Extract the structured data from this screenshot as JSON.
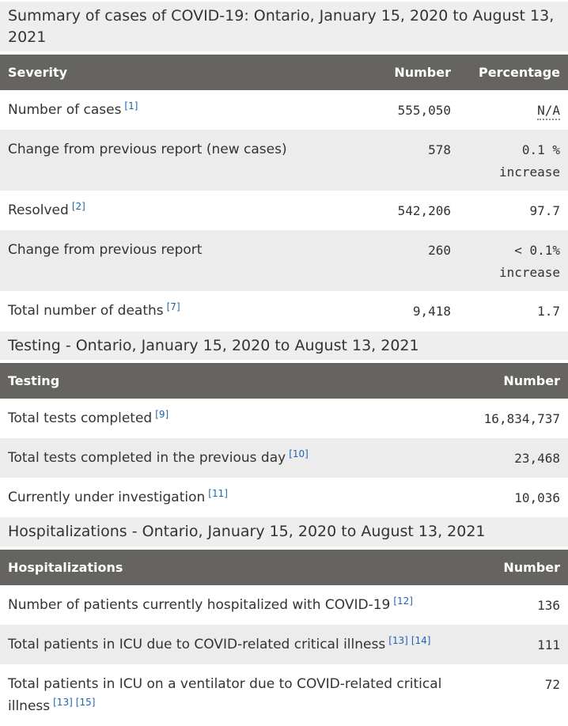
{
  "colors": {
    "text": "#333333",
    "link": "#2064b0",
    "header_bg": "#666461",
    "header_text": "#ffffff",
    "stripe": "#ececec",
    "caption_bg": "#eeeeee",
    "page_bg": "#ffffff"
  },
  "tables": [
    {
      "caption": "Summary of cases of COVID-19: Ontario, January 15, 2020 to August 13, 2021",
      "columns": [
        "Severity",
        "Number",
        "Percentage"
      ],
      "rows": [
        {
          "label": "Number of cases",
          "footnotes": [
            "[1]"
          ],
          "number": "555,050",
          "percentage": "N/A",
          "abbr": true
        },
        {
          "label": "Change from previous report (new cases)",
          "footnotes": [],
          "number": "578",
          "percentage": "0.1 %",
          "percentage_line2": "increase"
        },
        {
          "label": "Resolved",
          "footnotes": [
            "[2]"
          ],
          "number": "542,206",
          "percentage": "97.7"
        },
        {
          "label": "Change from previous report",
          "footnotes": [],
          "number": "260",
          "percentage": "< 0.1%",
          "percentage_line2": "increase"
        },
        {
          "label": "Total number of deaths",
          "footnotes": [
            "[7]"
          ],
          "number": "9,418",
          "percentage": "1.7"
        }
      ]
    },
    {
      "caption": "Testing - Ontario, January 15, 2020 to August 13, 2021",
      "columns": [
        "Testing",
        "Number"
      ],
      "rows": [
        {
          "label": "Total tests completed",
          "footnotes": [
            "[9]"
          ],
          "number": "16,834,737"
        },
        {
          "label": "Total tests completed in the previous day",
          "footnotes": [
            "[10]"
          ],
          "number": "23,468"
        },
        {
          "label": "Currently under investigation",
          "footnotes": [
            "[11]"
          ],
          "number": "10,036"
        }
      ]
    },
    {
      "caption": "Hospitalizations - Ontario, January 15, 2020 to August 13, 2021",
      "columns": [
        "Hospitalizations",
        "Number"
      ],
      "rows": [
        {
          "label": "Number of patients currently hospitalized with COVID-19",
          "footnotes": [
            "[12]"
          ],
          "number": "136"
        },
        {
          "label": "Total patients in ICU due to COVID-related critical illness",
          "footnotes": [
            "[13]",
            "[14]"
          ],
          "number": "111"
        },
        {
          "label": "Total patients in ICU on a ventilator due to COVID-related critical illness",
          "footnotes": [
            "[13]",
            "[15]"
          ],
          "number": "72"
        }
      ]
    }
  ]
}
